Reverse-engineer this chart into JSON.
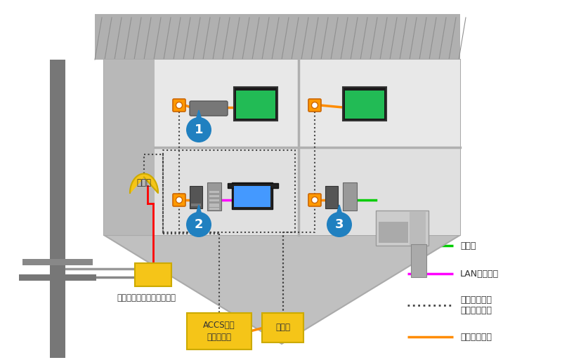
{
  "bg_color": "#ffffff",
  "orange_cable": "#ff8c00",
  "red_cable": "#ff0000",
  "pink_cable": "#ff00ff",
  "green_cable": "#00cc00",
  "dot_cable": "#444444",
  "yellow_box": "#f5c518",
  "blue_bubble": "#2080c0",
  "house_roof": "#c0c0c0",
  "house_body": "#d0d0d0",
  "house_wall": "#b8b8b8",
  "room_fill": "#e0e0e0",
  "room_fill2": "#e8e8e8",
  "ground_fill": "#b0b0b0",
  "ground_hatch": "#909090",
  "pole_color": "#808080",
  "legend_items": [
    {
      "label": "同軸ケーブル",
      "color": "#ff8c00",
      "style": "solid"
    },
    {
      "label": "同軸ケーブル\n（屋内配線）",
      "color": "#444444",
      "style": "dotted"
    },
    {
      "label": "LANケーブル",
      "color": "#ff00ff",
      "style": "solid"
    },
    {
      "label": "電話線",
      "color": "#00cc00",
      "style": "solid"
    }
  ],
  "tap_label": "引込用端子（タップオフ）",
  "hoan_label": "保安器",
  "boost_label": "ACCS対応\nブースター",
  "dist_label": "分配器"
}
